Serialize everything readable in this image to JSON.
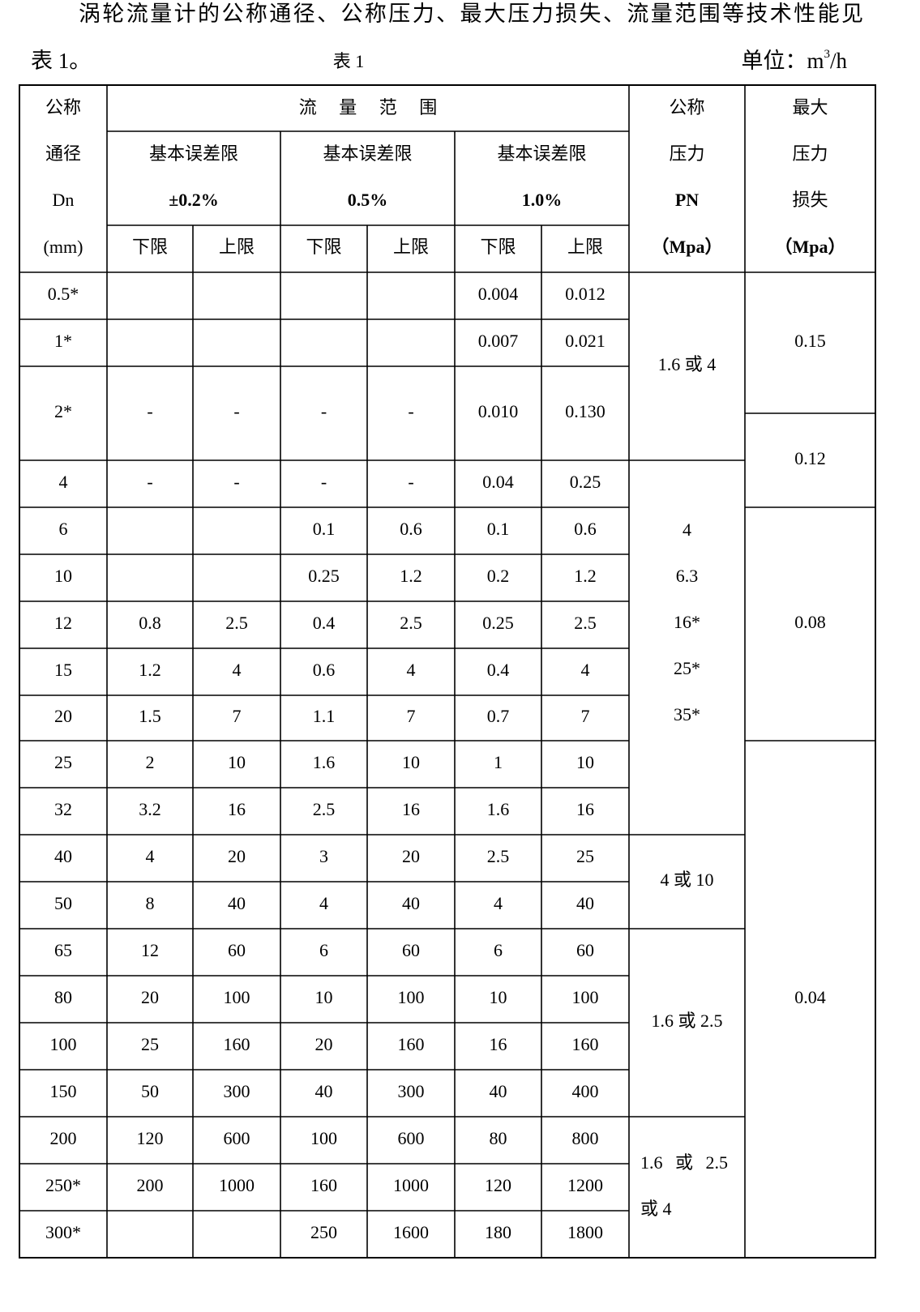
{
  "intro": {
    "line1": "涡轮流量计的公称通径、公称压力、最大压力损失、流量范围等技术性能见",
    "line2": "表 1。"
  },
  "caption": "表 1",
  "unit": {
    "prefix": "单位：m",
    "sup": "3",
    "suffix": "/h"
  },
  "table": {
    "header": {
      "diameter": [
        "公称",
        "通径",
        "Dn",
        "(mm)"
      ],
      "flow_range": "流 量 范 围",
      "groups": [
        {
          "title": "基本误差限",
          "accuracy": "±0.2%"
        },
        {
          "title": "基本误差限",
          "accuracy": "0.5%"
        },
        {
          "title": "基本误差限",
          "accuracy": "1.0%"
        }
      ],
      "limits": [
        "下限",
        "上限",
        "下限",
        "上限",
        "下限",
        "上限"
      ],
      "pressure": [
        "公称",
        "压力",
        "PN",
        "（Mpa）"
      ],
      "loss": [
        "最大",
        "压力",
        "损失",
        "（Mpa）"
      ]
    },
    "rows": [
      [
        "0.5*",
        null,
        null,
        null,
        null,
        "0.004",
        "0.012"
      ],
      [
        "1*",
        null,
        null,
        null,
        null,
        "0.007",
        "0.021"
      ],
      [
        "2*",
        "-",
        "-",
        "-",
        "-",
        "0.010",
        "0.130"
      ],
      [
        "4",
        "-",
        "-",
        "-",
        "-",
        "0.04",
        "0.25"
      ],
      [
        "6",
        null,
        null,
        "0.1",
        "0.6",
        "0.1",
        "0.6"
      ],
      [
        "10",
        null,
        null,
        "0.25",
        "1.2",
        "0.2",
        "1.2"
      ],
      [
        "12",
        "0.8",
        "2.5",
        "0.4",
        "2.5",
        "0.25",
        "2.5"
      ],
      [
        "15",
        "1.2",
        "4",
        "0.6",
        "4",
        "0.4",
        "4"
      ],
      [
        "20",
        "1.5",
        "7",
        "1.1",
        "7",
        "0.7",
        "7"
      ],
      [
        "25",
        "2",
        "10",
        "1.6",
        "10",
        "1",
        "10"
      ],
      [
        "32",
        "3.2",
        "16",
        "2.5",
        "16",
        "1.6",
        "16"
      ],
      [
        "40",
        "4",
        "20",
        "3",
        "20",
        "2.5",
        "25"
      ],
      [
        "50",
        "8",
        "40",
        "4",
        "40",
        "4",
        "40"
      ],
      [
        "65",
        "12",
        "60",
        "6",
        "60",
        "6",
        "60"
      ],
      [
        "80",
        "20",
        "100",
        "10",
        "100",
        "10",
        "100"
      ],
      [
        "100",
        "25",
        "160",
        "20",
        "160",
        "16",
        "160"
      ],
      [
        "150",
        "50",
        "300",
        "40",
        "300",
        "40",
        "400"
      ],
      [
        "200",
        "120",
        "600",
        "100",
        "600",
        "80",
        "800"
      ],
      [
        "250*",
        "200",
        "1000",
        "160",
        "1000",
        "120",
        "1200"
      ],
      [
        "300*",
        null,
        null,
        "250",
        "1600",
        "180",
        "1800"
      ]
    ],
    "pressure_groups": [
      [
        "1.6 或 4"
      ],
      [
        "4",
        "6.3",
        "16*",
        "25*",
        "35*"
      ],
      [
        "4 或 10"
      ],
      [
        "1.6 或 2.5"
      ],
      [
        "1.6 或 2.5",
        "或 4"
      ]
    ],
    "loss_groups": [
      "0.15",
      "0.12",
      "0.08",
      "0.04"
    ]
  }
}
